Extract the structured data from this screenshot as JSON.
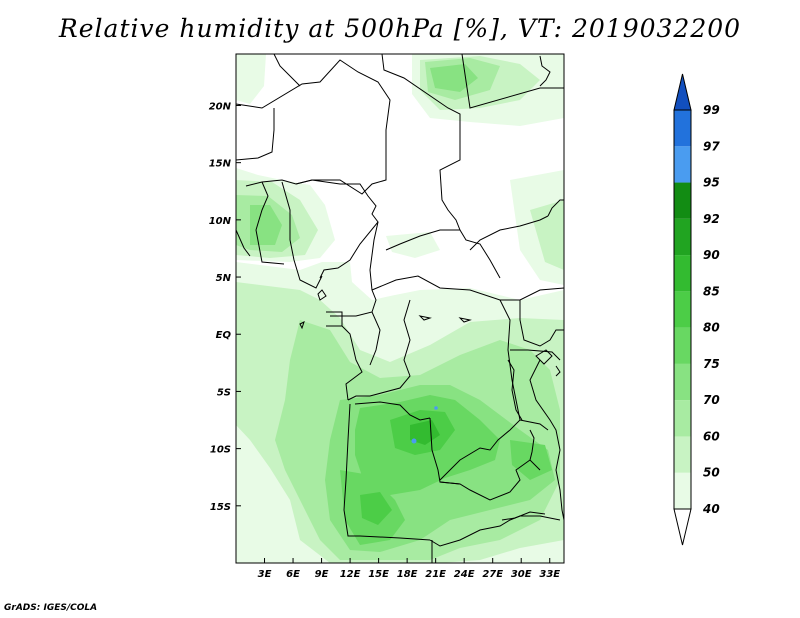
{
  "title": "Relative humidity at 500hPa [%], VT: 2019032200",
  "credit": "GrADS: IGES/COLA",
  "map": {
    "lon_range": [
      0,
      34.5
    ],
    "lat_range": [
      -20,
      24.5
    ],
    "x_ticks": [
      {
        "lon": 3,
        "label": "3E"
      },
      {
        "lon": 6,
        "label": "6E"
      },
      {
        "lon": 9,
        "label": "9E"
      },
      {
        "lon": 12,
        "label": "12E"
      },
      {
        "lon": 15,
        "label": "15E"
      },
      {
        "lon": 18,
        "label": "18E"
      },
      {
        "lon": 21,
        "label": "21E"
      },
      {
        "lon": 24,
        "label": "24E"
      },
      {
        "lon": 27,
        "label": "27E"
      },
      {
        "lon": 30,
        "label": "30E"
      },
      {
        "lon": 33,
        "label": "33E"
      }
    ],
    "y_ticks": [
      {
        "lat": 20,
        "label": "20N"
      },
      {
        "lat": 15,
        "label": "15N"
      },
      {
        "lat": 10,
        "label": "10N"
      },
      {
        "lat": 5,
        "label": "5N"
      },
      {
        "lat": 0,
        "label": "EQ"
      },
      {
        "lat": -5,
        "label": "5S"
      },
      {
        "lat": -10,
        "label": "10S"
      },
      {
        "lat": -15,
        "label": "15S"
      }
    ]
  },
  "colorbar": {
    "levels": [
      "40",
      "50",
      "60",
      "70",
      "75",
      "80",
      "85",
      "90",
      "92",
      "95",
      "97",
      "99"
    ],
    "colors": [
      "#ffffff",
      "#e8fbe6",
      "#c8f3c3",
      "#a8eba2",
      "#88e282",
      "#68d862",
      "#4ccd47",
      "#33bb30",
      "#21a421",
      "#128c13",
      "#4a9cf0",
      "#2272dc",
      "#124fbe"
    ]
  },
  "colors": {
    "border": "#000000",
    "rh_50": "#e8fbe6",
    "rh_60": "#c8f3c3",
    "rh_70": "#a8eba2",
    "rh_75": "#88e282",
    "rh_80": "#68d862",
    "rh_85": "#4ccd47",
    "rh_90": "#33bb30",
    "rh_97": "#4a9cf0"
  }
}
